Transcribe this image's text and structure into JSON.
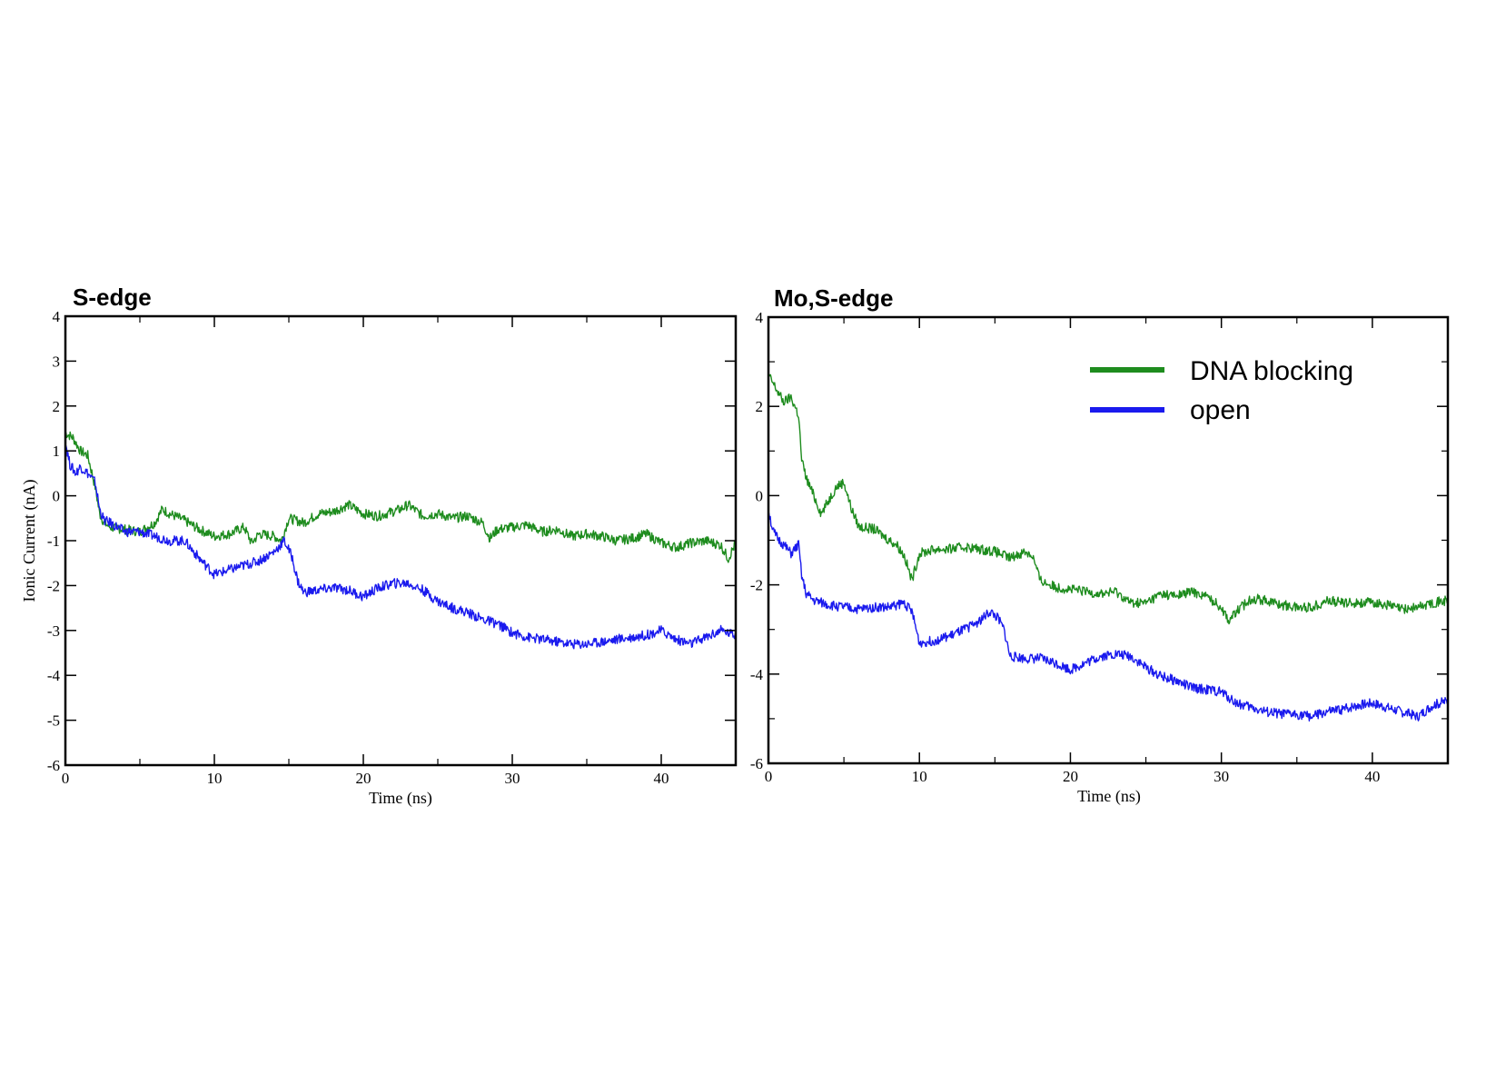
{
  "chart_data": [
    {
      "type": "line",
      "title": "S-edge",
      "xlabel": "Time (ns)",
      "ylabel": "Ionic Current (nA)",
      "xlim": [
        0,
        45
      ],
      "ylim": [
        -6,
        4
      ],
      "x_ticks": [
        0,
        10,
        20,
        30,
        40
      ],
      "x_tick_labels": [
        "0",
        "10",
        "20",
        "30",
        "40"
      ],
      "y_ticks": [
        4,
        3,
        2,
        1,
        0,
        -1,
        -2,
        -3,
        -4,
        -5,
        -6
      ],
      "y_tick_labels": [
        "4",
        "3",
        "2",
        "1",
        "0",
        "-1",
        "-2",
        "-3",
        "-4",
        "-5",
        "-6"
      ],
      "grid": false,
      "legend": false,
      "series": [
        {
          "name": "DNA blocking",
          "color": "#1e8c1e",
          "x": [
            0,
            0.5,
            1,
            1.5,
            2,
            2.3,
            2.6,
            3,
            4,
            5,
            6,
            6.5,
            7,
            8,
            9,
            10,
            11,
            12,
            12.5,
            13,
            14,
            14.5,
            15,
            16,
            17,
            18,
            19,
            20,
            21,
            22,
            22.5,
            23,
            24,
            25,
            26,
            27,
            28,
            28.5,
            29,
            30,
            31,
            32,
            33,
            34,
            35,
            36,
            37,
            38,
            39,
            40,
            41,
            42,
            43,
            44,
            44.5,
            45
          ],
          "values": [
            1.4,
            1.3,
            1.0,
            0.9,
            0.2,
            -0.4,
            -0.6,
            -0.7,
            -0.75,
            -0.8,
            -0.6,
            -0.3,
            -0.4,
            -0.55,
            -0.75,
            -0.9,
            -0.85,
            -0.7,
            -1.05,
            -0.85,
            -0.9,
            -1.0,
            -0.5,
            -0.6,
            -0.4,
            -0.35,
            -0.2,
            -0.4,
            -0.45,
            -0.35,
            -0.3,
            -0.2,
            -0.45,
            -0.4,
            -0.5,
            -0.45,
            -0.6,
            -0.95,
            -0.75,
            -0.7,
            -0.65,
            -0.8,
            -0.75,
            -0.9,
            -0.85,
            -0.9,
            -1.0,
            -0.95,
            -0.85,
            -1.05,
            -1.15,
            -1.05,
            -1.0,
            -1.1,
            -1.4,
            -1.05
          ]
        },
        {
          "name": "open",
          "color": "#1a1aee",
          "x": [
            0,
            0.3,
            0.7,
            1,
            1.5,
            2,
            2.3,
            2.6,
            3,
            4,
            5,
            6,
            7,
            8,
            9,
            10,
            11,
            12,
            13,
            14,
            14.7,
            15.2,
            15.6,
            16,
            17,
            18,
            19,
            20,
            21,
            22,
            23,
            24,
            25,
            26,
            27,
            28,
            29,
            30,
            31,
            32,
            33,
            34,
            35,
            36,
            37,
            38,
            39,
            40,
            41,
            42,
            43,
            44,
            45
          ],
          "values": [
            1.2,
            0.7,
            0.5,
            0.65,
            0.5,
            0.3,
            -0.3,
            -0.55,
            -0.6,
            -0.8,
            -0.8,
            -0.9,
            -1.0,
            -1.0,
            -1.4,
            -1.75,
            -1.65,
            -1.55,
            -1.45,
            -1.25,
            -1.0,
            -1.35,
            -1.9,
            -2.15,
            -2.1,
            -2.05,
            -2.1,
            -2.25,
            -2.05,
            -1.95,
            -1.95,
            -2.1,
            -2.35,
            -2.5,
            -2.6,
            -2.75,
            -2.85,
            -3.05,
            -3.15,
            -3.2,
            -3.25,
            -3.3,
            -3.3,
            -3.25,
            -3.2,
            -3.15,
            -3.1,
            -3.0,
            -3.2,
            -3.3,
            -3.15,
            -3.0,
            -3.1
          ]
        }
      ]
    },
    {
      "type": "line",
      "title": "Mo,S-edge",
      "xlabel": "Time (ns)",
      "ylabel": "",
      "xlim": [
        0,
        45
      ],
      "ylim": [
        -6,
        4
      ],
      "x_ticks": [
        0,
        10,
        20,
        30,
        40
      ],
      "x_tick_labels": [
        "0",
        "10",
        "20",
        "30",
        "40"
      ],
      "y_ticks": [
        4,
        2,
        0,
        -2,
        -4,
        -6
      ],
      "y_tick_labels": [
        "4",
        "2",
        "0",
        "-2",
        "-4",
        "-6"
      ],
      "grid": false,
      "legend": "top-right",
      "legend_entries": [
        "DNA blocking",
        "open"
      ],
      "series": [
        {
          "name": "DNA blocking",
          "color": "#1e8c1e",
          "x": [
            0,
            0.5,
            1,
            1.5,
            2,
            2.2,
            2.5,
            3,
            3.5,
            4,
            4.5,
            5,
            5.5,
            6,
            7,
            8,
            8.5,
            9,
            9.5,
            10,
            11,
            12,
            13,
            14,
            15,
            16,
            17,
            17.5,
            18,
            19,
            20,
            21,
            22,
            23,
            24,
            25,
            26,
            27,
            28,
            29,
            30,
            30.5,
            31,
            32,
            33,
            34,
            35,
            36,
            37,
            38,
            39,
            40,
            41,
            42,
            43,
            44,
            45
          ],
          "values": [
            2.7,
            2.4,
            2.1,
            2.2,
            1.8,
            0.8,
            0.4,
            0.0,
            -0.4,
            -0.1,
            0.2,
            0.3,
            -0.3,
            -0.7,
            -0.75,
            -1.0,
            -1.1,
            -1.35,
            -1.9,
            -1.3,
            -1.2,
            -1.2,
            -1.15,
            -1.2,
            -1.25,
            -1.4,
            -1.25,
            -1.35,
            -1.9,
            -2.05,
            -2.1,
            -2.15,
            -2.2,
            -2.15,
            -2.4,
            -2.4,
            -2.2,
            -2.25,
            -2.15,
            -2.25,
            -2.5,
            -2.8,
            -2.6,
            -2.3,
            -2.35,
            -2.45,
            -2.5,
            -2.5,
            -2.35,
            -2.4,
            -2.4,
            -2.4,
            -2.45,
            -2.55,
            -2.5,
            -2.4,
            -2.35
          ]
        },
        {
          "name": "open",
          "color": "#1a1aee",
          "x": [
            0,
            0.3,
            0.7,
            1,
            1.5,
            2,
            2.2,
            2.5,
            3,
            4,
            5,
            6,
            7,
            8,
            9,
            9.5,
            10,
            11,
            12,
            13,
            14,
            14.7,
            15.2,
            15.6,
            16,
            17,
            18,
            19,
            20,
            21,
            22,
            23,
            24,
            25,
            26,
            27,
            28,
            29,
            30,
            31,
            32,
            33,
            34,
            35,
            36,
            37,
            38,
            39,
            40,
            41,
            42,
            43,
            44,
            45
          ],
          "values": [
            -0.3,
            -0.8,
            -1.0,
            -1.1,
            -1.3,
            -1.1,
            -1.8,
            -2.2,
            -2.35,
            -2.45,
            -2.5,
            -2.55,
            -2.5,
            -2.5,
            -2.4,
            -2.6,
            -3.3,
            -3.25,
            -3.15,
            -3.0,
            -2.8,
            -2.6,
            -2.75,
            -3.0,
            -3.6,
            -3.65,
            -3.65,
            -3.75,
            -3.9,
            -3.75,
            -3.6,
            -3.55,
            -3.6,
            -3.85,
            -4.05,
            -4.15,
            -4.3,
            -4.35,
            -4.4,
            -4.65,
            -4.75,
            -4.85,
            -4.9,
            -4.9,
            -4.95,
            -4.85,
            -4.8,
            -4.7,
            -4.65,
            -4.75,
            -4.85,
            -4.95,
            -4.7,
            -4.6
          ]
        }
      ]
    }
  ]
}
